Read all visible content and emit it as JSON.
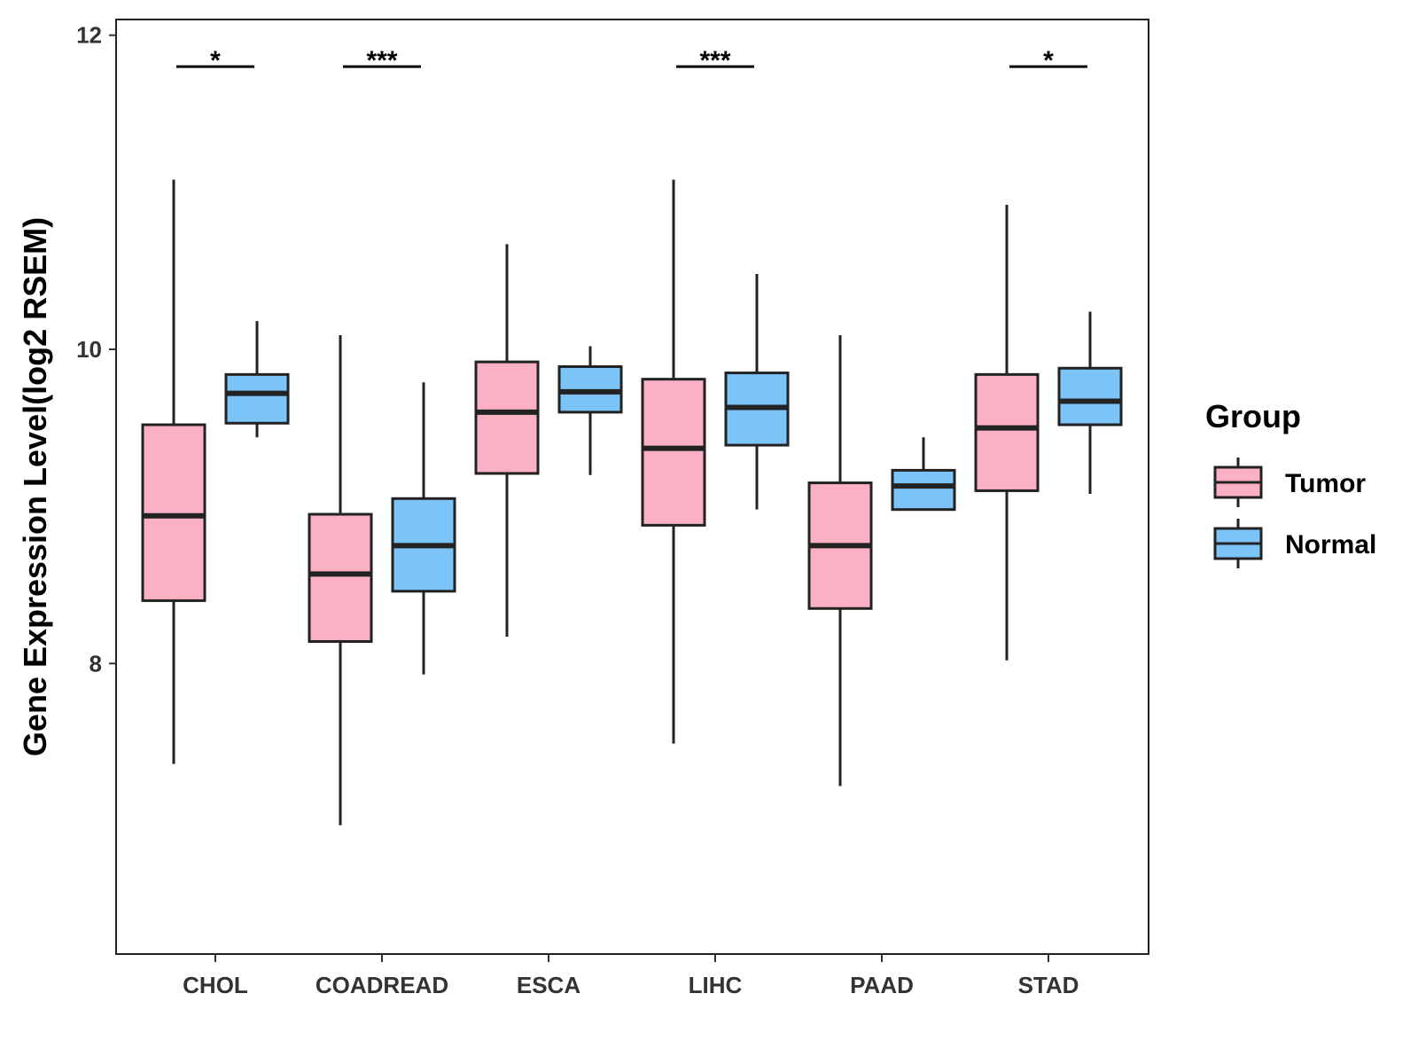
{
  "chart_data": {
    "type": "boxplot",
    "title": "",
    "xlabel": "",
    "ylabel": "Gene Expression Level(log2 RSEM)",
    "ylim": [
      6.15,
      12.1
    ],
    "yticks": [
      8,
      10,
      12
    ],
    "grid": false,
    "categories": [
      "CHOL",
      "COADREAD",
      "ESCA",
      "LIHC",
      "PAAD",
      "STAD"
    ],
    "legend": {
      "title": "Group",
      "position": "right",
      "entries": [
        {
          "name": "Tumor",
          "color": "#FBB1C3"
        },
        {
          "name": "Normal",
          "color": "#7CC3F8"
        }
      ]
    },
    "series": [
      {
        "name": "Tumor",
        "color": "#FBB1C3",
        "boxes": [
          {
            "whisker_low": 7.36,
            "q1": 8.4,
            "median": 8.94,
            "q3": 9.52,
            "whisker_high": 11.08
          },
          {
            "whisker_low": 6.97,
            "q1": 8.14,
            "median": 8.57,
            "q3": 8.95,
            "whisker_high": 10.09
          },
          {
            "whisker_low": 8.17,
            "q1": 9.21,
            "median": 9.6,
            "q3": 9.92,
            "whisker_high": 10.67
          },
          {
            "whisker_low": 7.49,
            "q1": 8.88,
            "median": 9.37,
            "q3": 9.81,
            "whisker_high": 11.08
          },
          {
            "whisker_low": 7.22,
            "q1": 8.35,
            "median": 8.75,
            "q3": 9.15,
            "whisker_high": 10.09
          },
          {
            "whisker_low": 8.02,
            "q1": 9.1,
            "median": 9.5,
            "q3": 9.84,
            "whisker_high": 10.92
          }
        ]
      },
      {
        "name": "Normal",
        "color": "#7CC3F8",
        "boxes": [
          {
            "whisker_low": 9.44,
            "q1": 9.53,
            "median": 9.72,
            "q3": 9.84,
            "whisker_high": 10.18
          },
          {
            "whisker_low": 7.93,
            "q1": 8.46,
            "median": 8.75,
            "q3": 9.05,
            "whisker_high": 9.79
          },
          {
            "whisker_low": 9.2,
            "q1": 9.6,
            "median": 9.73,
            "q3": 9.89,
            "whisker_high": 10.02
          },
          {
            "whisker_low": 8.98,
            "q1": 9.39,
            "median": 9.63,
            "q3": 9.85,
            "whisker_high": 10.48
          },
          {
            "whisker_low": 8.98,
            "q1": 8.98,
            "median": 9.13,
            "q3": 9.23,
            "whisker_high": 9.44
          },
          {
            "whisker_low": 9.08,
            "q1": 9.52,
            "median": 9.67,
            "q3": 9.88,
            "whisker_high": 10.24
          }
        ]
      }
    ],
    "significance": [
      {
        "category": "CHOL",
        "label": "*"
      },
      {
        "category": "COADREAD",
        "label": "***"
      },
      {
        "category": "LIHC",
        "label": "***"
      },
      {
        "category": "STAD",
        "label": "*"
      }
    ],
    "significance_y": 11.8
  }
}
